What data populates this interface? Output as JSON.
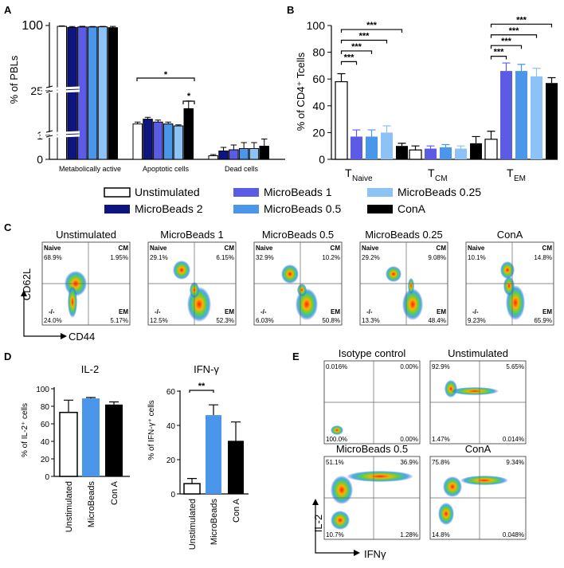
{
  "colors": {
    "unstim": "#ffffff",
    "mb2": "#0d1580",
    "mb1": "#5b5be6",
    "mb05": "#4a96ea",
    "mb025": "#8cc2f5",
    "cona": "#000000"
  },
  "panel_labels": {
    "a": "A",
    "b": "B",
    "c": "C",
    "d": "D",
    "e": "E"
  },
  "legend": [
    {
      "key": "unstim",
      "label": "Unstimulated"
    },
    {
      "key": "mb1",
      "label": "MicroBeads 1"
    },
    {
      "key": "mb025",
      "label": "MicroBeads 0.25"
    },
    {
      "key": "mb2",
      "label": "MicroBeads 2"
    },
    {
      "key": "mb05",
      "label": "MicroBeads 0.5"
    },
    {
      "key": "cona",
      "label": "ConA"
    }
  ],
  "chart_data": [
    {
      "id": "A",
      "type": "bar",
      "ylabel": "% of PBLs",
      "categories": [
        "Metabolically active",
        "Apoptotic cells",
        "Dead cells"
      ],
      "y_ticks": [
        "0",
        "1",
        "25",
        "100"
      ],
      "series": [
        {
          "name": "Unstimulated",
          "key": "unstim",
          "values": [
            99,
            1.6,
            0.15
          ],
          "errors": [
            0.5,
            0.1,
            0.05
          ]
        },
        {
          "name": "MicroBeads 2",
          "key": "mb2",
          "values": [
            97.8,
            1.85,
            0.35
          ],
          "errors": [
            1,
            0.1,
            0.15
          ]
        },
        {
          "name": "MicroBeads 1",
          "key": "mb1",
          "values": [
            98.3,
            1.7,
            0.4
          ],
          "errors": [
            0.8,
            0.1,
            0.2
          ]
        },
        {
          "name": "MicroBeads 0.5",
          "key": "mb05",
          "values": [
            98.3,
            1.6,
            0.45
          ],
          "errors": [
            0.6,
            0.1,
            0.25
          ]
        },
        {
          "name": "MicroBeads 0.25",
          "key": "mb025",
          "values": [
            98.5,
            1.5,
            0.45
          ],
          "errors": [
            0.5,
            0.05,
            0.25
          ]
        },
        {
          "name": "ConA",
          "key": "cona",
          "values": [
            97.5,
            2.4,
            0.55
          ],
          "errors": [
            1.5,
            0.4,
            0.3
          ]
        }
      ],
      "significance": [
        "*",
        "*"
      ]
    },
    {
      "id": "B",
      "type": "bar",
      "ylabel": "% of CD4⁺ Tcells",
      "ylim": [
        0,
        100
      ],
      "y_ticks": [
        "0",
        "20",
        "40",
        "60",
        "80",
        "100"
      ],
      "categories": [
        {
          "base": "T",
          "sub": "Naive"
        },
        {
          "base": "T",
          "sub": "CM"
        },
        {
          "base": "T",
          "sub": "EM"
        }
      ],
      "series": [
        {
          "name": "Unstimulated",
          "key": "unstim",
          "values": [
            58,
            7,
            15
          ],
          "errors": [
            6,
            3,
            6
          ]
        },
        {
          "name": "MicroBeads 1",
          "key": "mb1",
          "values": [
            17,
            8,
            66
          ],
          "errors": [
            5,
            2,
            6
          ]
        },
        {
          "name": "MicroBeads 0.5",
          "key": "mb05",
          "values": [
            17,
            9,
            66
          ],
          "errors": [
            5,
            2,
            5
          ]
        },
        {
          "name": "MicroBeads 0.25",
          "key": "mb025",
          "values": [
            20,
            8,
            62
          ],
          "errors": [
            5,
            2,
            6
          ]
        },
        {
          "name": "ConA",
          "key": "cona",
          "values": [
            10,
            12,
            57
          ],
          "errors": [
            2,
            5,
            4
          ]
        }
      ],
      "significance": [
        "***",
        "***",
        "***",
        "***",
        "***",
        "***",
        "***",
        "***"
      ]
    },
    {
      "id": "C",
      "type": "scatter",
      "xlabel": "CD44",
      "ylabel": "CD62L",
      "plots": [
        {
          "title": "Unstimulated",
          "q": [
            "Naive",
            "CM",
            "-/-",
            "EM"
          ],
          "v": [
            "68.9%",
            "1.95%",
            "24.0%",
            "5.17%"
          ]
        },
        {
          "title": "MicroBeads 1",
          "q": [
            "Naive",
            "CM",
            "-/-",
            "EM"
          ],
          "v": [
            "29.1%",
            "6.15%",
            "12.5%",
            "52.3%"
          ]
        },
        {
          "title": "MicroBeads 0.5",
          "q": [
            "Naive",
            "CM",
            "-/-",
            "EM"
          ],
          "v": [
            "32.9%",
            "10.2%",
            "6.03%",
            "50.8%"
          ]
        },
        {
          "title": "MicroBeads 0.25",
          "q": [
            "Naive",
            "CM",
            "-/-",
            "EM"
          ],
          "v": [
            "29.2%",
            "9.08%",
            "13.3%",
            "48.4%"
          ]
        },
        {
          "title": "ConA",
          "q": [
            "Naive",
            "CM",
            "-/-",
            "EM"
          ],
          "v": [
            "10.1%",
            "14.8%",
            "9.23%",
            "65.9%"
          ]
        }
      ]
    },
    {
      "id": "D1",
      "type": "bar",
      "title": "IL-2",
      "ylabel": "% of IL-2⁺ cells",
      "ylim": [
        0,
        100
      ],
      "y_ticks": [
        "0",
        "20",
        "40",
        "60",
        "80",
        "100"
      ],
      "categories": [
        "Unstimulated",
        "MicroBeads",
        "Con A"
      ],
      "values": [
        73,
        89,
        82
      ],
      "errors": [
        14,
        1,
        3
      ],
      "keys": [
        "unstim",
        "mb05",
        "cona"
      ]
    },
    {
      "id": "D2",
      "type": "bar",
      "title": "IFN-γ",
      "ylabel": "% of IFN-γ⁺ cells",
      "ylim": [
        0,
        60
      ],
      "y_ticks": [
        "0",
        "20",
        "40",
        "60"
      ],
      "categories": [
        "Unstimulated",
        "MicroBeads",
        "Con A"
      ],
      "values": [
        6,
        46,
        31
      ],
      "errors": [
        3,
        6,
        11
      ],
      "keys": [
        "unstim",
        "mb05",
        "cona"
      ],
      "significance": [
        "**"
      ]
    },
    {
      "id": "E",
      "type": "scatter",
      "xlabel": "IFNγ",
      "ylabel": "IL-2",
      "plots": [
        {
          "title": "Isotype control",
          "v": [
            "0.016%",
            "0.00%",
            "100.0%",
            "0.00%"
          ]
        },
        {
          "title": "Unstimulated",
          "v": [
            "92.9%",
            "5.65%",
            "1.47%",
            "0.014%"
          ]
        },
        {
          "title": "MicroBeads 0.5",
          "v": [
            "51.1%",
            "36.9%",
            "10.7%",
            "1.28%"
          ]
        },
        {
          "title": "ConA",
          "v": [
            "75.8%",
            "9.34%",
            "14.8%",
            "0.048%"
          ]
        }
      ]
    }
  ]
}
